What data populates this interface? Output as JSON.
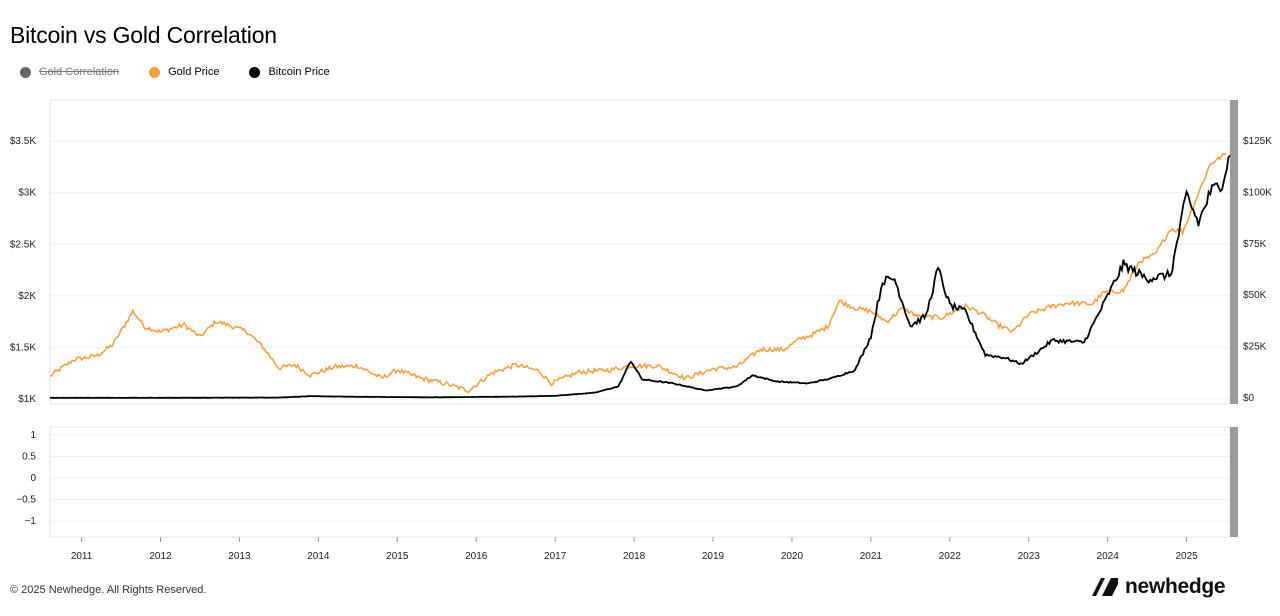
{
  "title": "Bitcoin vs Gold Correlation",
  "legend": [
    {
      "label": "Gold Correlation",
      "color": "#666666",
      "hidden": true
    },
    {
      "label": "Gold Price",
      "color": "#f7a13e",
      "hidden": false
    },
    {
      "label": "Bitcoin Price",
      "color": "#000000",
      "hidden": false
    }
  ],
  "footer": "© 2025 Newhedge. All Rights Reserved.",
  "brand": "newhedge",
  "chart_data": [
    {
      "type": "line",
      "title": "Bitcoin vs Gold Correlation",
      "x_range": [
        2010.6,
        2025.55
      ],
      "x_ticks": [
        "2011",
        "2012",
        "2013",
        "2014",
        "2015",
        "2016",
        "2017",
        "2018",
        "2019",
        "2020",
        "2021",
        "2022",
        "2023",
        "2024",
        "2025"
      ],
      "y_left": {
        "label": "Gold Price",
        "range": [
          950,
          3900
        ],
        "ticks": [
          1000,
          1500,
          2000,
          2500,
          3000,
          3500
        ],
        "tick_labels": [
          "$1K",
          "$1.5K",
          "$2K",
          "$2.5K",
          "$3K",
          "$3.5K"
        ]
      },
      "y_right": {
        "label": "Bitcoin Price",
        "range": [
          -3000,
          145000
        ],
        "ticks": [
          0,
          25000,
          50000,
          75000,
          100000,
          125000
        ],
        "tick_labels": [
          "$0",
          "$25K",
          "$50K",
          "$75K",
          "$100K",
          "$125K"
        ]
      },
      "series": [
        {
          "name": "Gold Price",
          "axis": "left",
          "color": "#f7a13e",
          "x": [
            2010.6,
            2010.9,
            2011.2,
            2011.4,
            2011.65,
            2011.8,
            2012.0,
            2012.3,
            2012.5,
            2012.7,
            2012.85,
            2013.1,
            2013.3,
            2013.5,
            2013.7,
            2013.9,
            2014.2,
            2014.5,
            2014.8,
            2015.0,
            2015.3,
            2015.6,
            2015.9,
            2016.2,
            2016.5,
            2016.8,
            2016.95,
            2017.3,
            2017.7,
            2017.95,
            2018.3,
            2018.65,
            2019.0,
            2019.3,
            2019.6,
            2019.9,
            2020.1,
            2020.25,
            2020.45,
            2020.6,
            2020.8,
            2021.0,
            2021.2,
            2021.4,
            2021.6,
            2021.9,
            2022.2,
            2022.4,
            2022.6,
            2022.8,
            2023.0,
            2023.3,
            2023.5,
            2023.8,
            2023.95,
            2024.2,
            2024.4,
            2024.6,
            2024.8,
            2024.95,
            2025.1,
            2025.3,
            2025.5
          ],
          "y": [
            1220,
            1380,
            1420,
            1530,
            1850,
            1700,
            1650,
            1720,
            1600,
            1750,
            1720,
            1650,
            1500,
            1300,
            1330,
            1230,
            1310,
            1320,
            1200,
            1280,
            1200,
            1150,
            1080,
            1250,
            1330,
            1270,
            1150,
            1260,
            1280,
            1320,
            1320,
            1200,
            1290,
            1310,
            1480,
            1480,
            1580,
            1620,
            1700,
            1950,
            1880,
            1850,
            1750,
            1880,
            1800,
            1790,
            1900,
            1830,
            1720,
            1650,
            1820,
            1900,
            1930,
            1920,
            2030,
            2050,
            2330,
            2400,
            2650,
            2620,
            2900,
            3280,
            3380
          ]
        },
        {
          "name": "Bitcoin Price",
          "axis": "right",
          "color": "#000000",
          "x": [
            2010.6,
            2012.0,
            2013.5,
            2013.9,
            2014.5,
            2015.5,
            2016.5,
            2017.0,
            2017.5,
            2017.8,
            2017.96,
            2018.1,
            2018.5,
            2018.9,
            2019.3,
            2019.5,
            2019.8,
            2020.2,
            2020.5,
            2020.8,
            2021.0,
            2021.15,
            2021.3,
            2021.5,
            2021.7,
            2021.85,
            2022.0,
            2022.2,
            2022.45,
            2022.7,
            2022.9,
            2023.1,
            2023.3,
            2023.7,
            2023.9,
            2024.2,
            2024.5,
            2024.8,
            2025.0,
            2025.15,
            2025.3,
            2025.45,
            2025.55
          ],
          "y": [
            0,
            10,
            150,
            800,
            500,
            250,
            600,
            1000,
            2500,
            5500,
            18000,
            9000,
            7000,
            3600,
            5500,
            11000,
            8000,
            7000,
            9500,
            13500,
            30000,
            57000,
            58000,
            35000,
            40000,
            63000,
            45000,
            42000,
            21000,
            19500,
            16500,
            22000,
            28000,
            27000,
            42000,
            65000,
            58000,
            60000,
            99000,
            85000,
            100000,
            105000,
            118000
          ]
        },
        {
          "name": "Gold Correlation",
          "axis": "bottom",
          "color": "#666666",
          "hidden": true,
          "range": [
            -1,
            1
          ],
          "ticks": [
            1,
            0.5,
            0,
            -0.5,
            -1
          ],
          "tick_labels": [
            "1",
            "0.5",
            "0",
            "−0.5",
            "−1"
          ]
        }
      ]
    }
  ]
}
